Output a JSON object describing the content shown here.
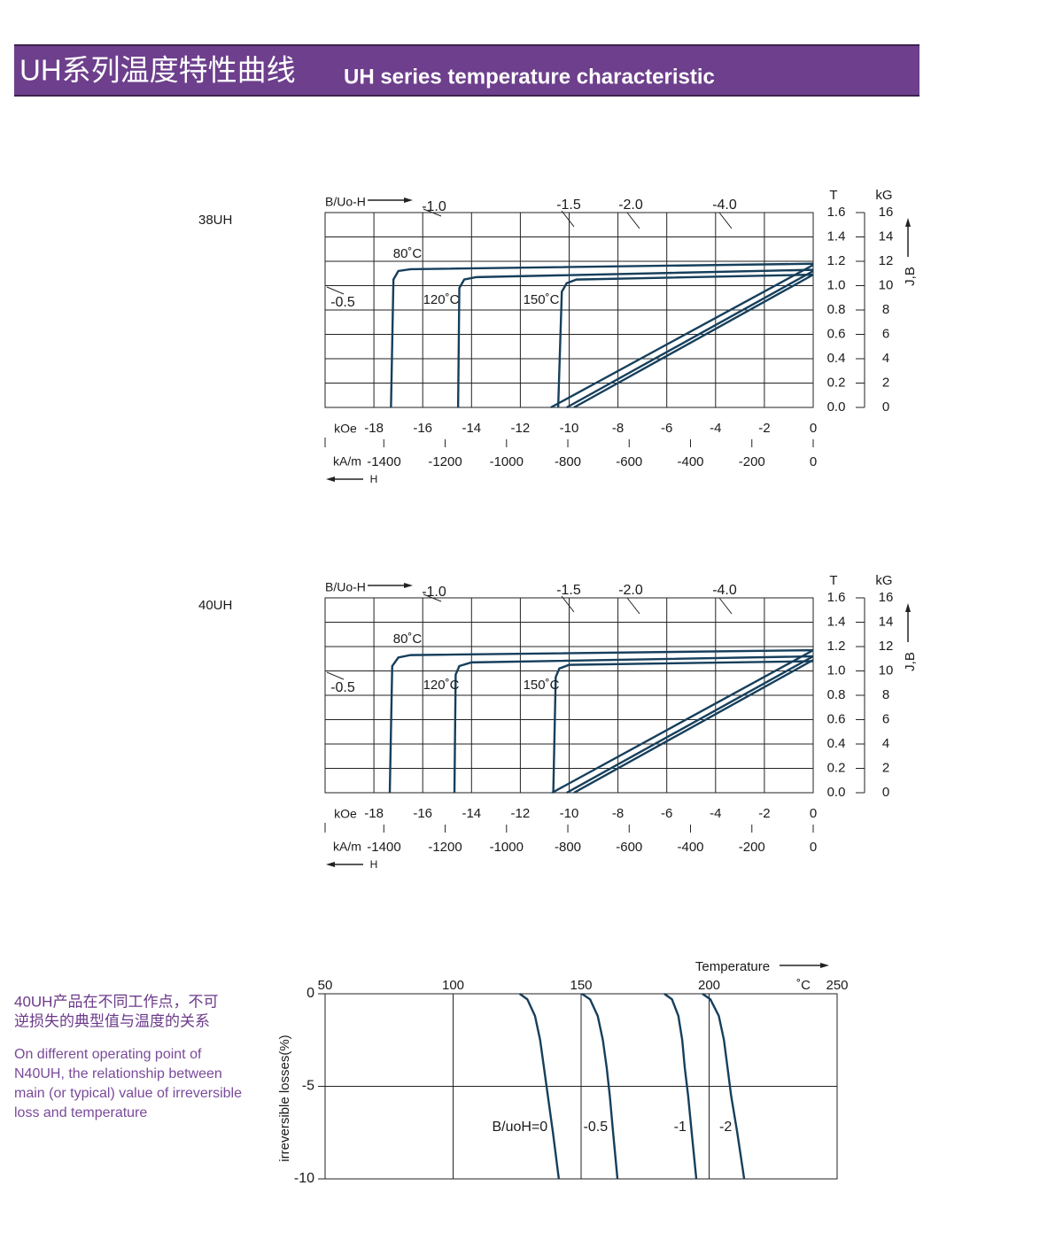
{
  "header": {
    "title_cn": "UH系列温度特性曲线",
    "title_en": "UH series temperature characteristic"
  },
  "note": {
    "cn": [
      "40UH产品在不同工作点，不可",
      "逆损失的典型值与温度的关系"
    ],
    "en": [
      "On different operating point of",
      "N40UH, the relationship between",
      "main (or typical) value of irreversible",
      "loss and temperature"
    ]
  },
  "chart_data": [
    {
      "type": "demag",
      "label": "38UH",
      "permeance_title": "B/Uo-H",
      "permeance_labels": [
        "-1.0",
        "-1.5",
        "-2.0",
        "-4.0",
        "-0.5"
      ],
      "x_label": "kOe",
      "x2_label": "kA/m",
      "h_label": "H",
      "y_unit": "T",
      "y2_unit": "kG",
      "y2_label": "J,B",
      "xlim": [
        -20,
        0
      ],
      "xticks": [
        -18,
        -16,
        -14,
        -12,
        -10,
        -8,
        -6,
        -4,
        -2,
        0
      ],
      "x2lim": [
        -1591.5,
        0
      ],
      "x2ticks": [
        -1400,
        -1200,
        -1000,
        -800,
        -600,
        -400,
        -200,
        0
      ],
      "ylim": [
        0,
        1.6
      ],
      "yticks": [
        {
          "value": 0,
          "label": "0.0"
        },
        0.2,
        0.4,
        0.6,
        0.8,
        {
          "value": 1,
          "label": "1.0"
        },
        1.2,
        1.4,
        1.6
      ],
      "y2lim": [
        0,
        16
      ],
      "y2ticks": [
        0,
        2,
        4,
        6,
        8,
        10,
        12,
        14,
        16
      ],
      "series": [
        {
          "name": "80˚C",
          "color": "#163f5c",
          "x": [
            0,
            -16.5,
            -17.0,
            -17.2,
            -17.3
          ],
          "values": [
            1.18,
            1.135,
            1.12,
            1.05,
            0
          ],
          "b_x": [
            0,
            -10.75
          ],
          "b_values": [
            1.17,
            0
          ]
        },
        {
          "name": "120˚C",
          "color": "#163f5c",
          "x": [
            0,
            -13.8,
            -14.3,
            -14.5,
            -14.55
          ],
          "values": [
            1.13,
            1.07,
            1.05,
            0.98,
            0
          ],
          "b_x": [
            0,
            -10.1
          ],
          "b_values": [
            1.12,
            0
          ]
        },
        {
          "name": "150˚C",
          "color": "#163f5c",
          "x": [
            0,
            -9.7,
            -10.1,
            -10.3,
            -10.45
          ],
          "values": [
            1.09,
            1.05,
            1.02,
            0.95,
            0
          ],
          "b_x": [
            0,
            -9.8
          ],
          "b_values": [
            1.09,
            0
          ]
        }
      ]
    },
    {
      "type": "demag",
      "label": "40UH",
      "permeance_title": "B/Uo-H",
      "permeance_labels": [
        "-1.0",
        "-1.5",
        "-2.0",
        "-4.0",
        "-0.5"
      ],
      "x_label": "kOe",
      "x2_label": "kA/m",
      "h_label": "H",
      "y_unit": "T",
      "y2_unit": "kG",
      "y2_label": "J,B",
      "xlim": [
        -20,
        0
      ],
      "xticks": [
        -18,
        -16,
        -14,
        -12,
        -10,
        -8,
        -6,
        -4,
        -2,
        0
      ],
      "x2lim": [
        -1591.5,
        0
      ],
      "x2ticks": [
        -1400,
        -1200,
        -1000,
        -800,
        -600,
        -400,
        -200,
        0
      ],
      "ylim": [
        0,
        1.6
      ],
      "yticks": [
        {
          "value": 0,
          "label": "0.0"
        },
        0.2,
        0.4,
        0.6,
        0.8,
        {
          "value": 1,
          "label": "1.0"
        },
        1.2,
        1.4,
        1.6
      ],
      "y2lim": [
        0,
        16
      ],
      "y2ticks": [
        0,
        2,
        4,
        6,
        8,
        10,
        12,
        14,
        16
      ],
      "series": [
        {
          "name": "80˚C",
          "color": "#163f5c",
          "x": [
            0,
            -16.5,
            -17.0,
            -17.25,
            -17.35
          ],
          "values": [
            1.17,
            1.13,
            1.11,
            1.04,
            0
          ],
          "b_x": [
            0,
            -10.7
          ],
          "b_values": [
            1.17,
            0
          ]
        },
        {
          "name": "120˚C",
          "color": "#163f5c",
          "x": [
            0,
            -14.0,
            -14.5,
            -14.65,
            -14.7
          ],
          "values": [
            1.12,
            1.07,
            1.04,
            0.97,
            0
          ],
          "b_x": [
            0,
            -10.1
          ],
          "b_values": [
            1.12,
            0
          ]
        },
        {
          "name": "150˚C",
          "color": "#163f5c",
          "x": [
            0,
            -10.0,
            -10.4,
            -10.55,
            -10.65
          ],
          "values": [
            1.08,
            1.05,
            1.02,
            0.95,
            0
          ],
          "b_x": [
            0,
            -9.8
          ],
          "b_values": [
            1.09,
            0
          ]
        }
      ]
    },
    {
      "type": "line",
      "x_label": "Temperature",
      "x_unit": "˚C",
      "y_label": "irreversible  losses(%)",
      "xlim": [
        50,
        250
      ],
      "xticks": [
        50,
        100,
        150,
        200,
        250
      ],
      "ylim": [
        -10,
        0
      ],
      "yticks": [
        0,
        -5,
        -10
      ],
      "series": [
        {
          "name": "B/uoH=0",
          "color": "#163f5c",
          "x": [
            126,
            129,
            132,
            134,
            135.5,
            137,
            139,
            141.3
          ],
          "values": [
            0,
            -0.3,
            -1.2,
            -2.5,
            -4,
            -5.5,
            -7.5,
            -10
          ]
        },
        {
          "name": "-0.5",
          "color": "#163f5c",
          "x": [
            150.3,
            153.5,
            156.5,
            158.5,
            160,
            161.2,
            162.5,
            164.2
          ],
          "values": [
            0,
            -0.3,
            -1.2,
            -2.5,
            -4,
            -5.5,
            -7.5,
            -10
          ]
        },
        {
          "name": "-1",
          "color": "#163f5c",
          "x": [
            182.5,
            185.5,
            188,
            189.5,
            190.5,
            191.8,
            193.2,
            195
          ],
          "values": [
            0,
            -0.3,
            -1.2,
            -2.5,
            -4,
            -5.5,
            -7.5,
            -10
          ]
        },
        {
          "name": "-2",
          "color": "#163f5c",
          "x": [
            197.4,
            200.5,
            203.8,
            205.8,
            207.2,
            208.6,
            211,
            213.7
          ],
          "values": [
            0,
            -0.3,
            -1.2,
            -2.5,
            -4,
            -5.5,
            -7.5,
            -10
          ]
        }
      ]
    }
  ]
}
